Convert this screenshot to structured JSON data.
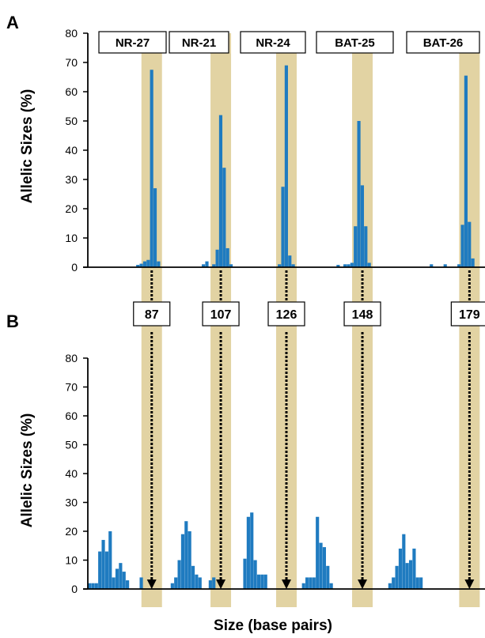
{
  "colors": {
    "bar": "#1f7bc0",
    "band": "#e2d3a3",
    "axis": "#000000",
    "box_border": "#000000"
  },
  "chart_data": [
    {
      "type": "bar",
      "panel": "A",
      "ylabel": "Allelic Sizes (%)",
      "xlabel": "",
      "ylim": [
        0,
        80
      ],
      "yticks": [
        0,
        10,
        20,
        30,
        40,
        50,
        60,
        70,
        80
      ],
      "xlim": [
        69,
        184
      ],
      "markers": [
        {
          "name": "NR-27",
          "size": 87
        },
        {
          "name": "NR-21",
          "size": 107
        },
        {
          "name": "NR-24",
          "size": 126
        },
        {
          "name": "BAT-25",
          "size": 148
        },
        {
          "name": "BAT-26",
          "size": 179
        }
      ],
      "bars": [
        {
          "x": 83,
          "y": 0.8
        },
        {
          "x": 84,
          "y": 1.2
        },
        {
          "x": 85,
          "y": 2
        },
        {
          "x": 86,
          "y": 2.5
        },
        {
          "x": 87,
          "y": 67.5
        },
        {
          "x": 88,
          "y": 27
        },
        {
          "x": 89,
          "y": 2
        },
        {
          "x": 102,
          "y": 1
        },
        {
          "x": 103,
          "y": 2
        },
        {
          "x": 105,
          "y": 1
        },
        {
          "x": 106,
          "y": 6
        },
        {
          "x": 107,
          "y": 52
        },
        {
          "x": 108,
          "y": 34
        },
        {
          "x": 109,
          "y": 6.5
        },
        {
          "x": 110,
          "y": 1
        },
        {
          "x": 124,
          "y": 1
        },
        {
          "x": 125,
          "y": 27.5
        },
        {
          "x": 126,
          "y": 69
        },
        {
          "x": 127,
          "y": 4
        },
        {
          "x": 128,
          "y": 1
        },
        {
          "x": 141,
          "y": 0.8
        },
        {
          "x": 143,
          "y": 1
        },
        {
          "x": 144,
          "y": 1
        },
        {
          "x": 145,
          "y": 1.5
        },
        {
          "x": 146,
          "y": 14
        },
        {
          "x": 147,
          "y": 50
        },
        {
          "x": 148,
          "y": 28
        },
        {
          "x": 149,
          "y": 14
        },
        {
          "x": 150,
          "y": 1.5
        },
        {
          "x": 168,
          "y": 1
        },
        {
          "x": 172,
          "y": 1
        },
        {
          "x": 176,
          "y": 1
        },
        {
          "x": 177,
          "y": 14.5
        },
        {
          "x": 178,
          "y": 65.5
        },
        {
          "x": 179,
          "y": 15.5
        },
        {
          "x": 180,
          "y": 3
        }
      ]
    },
    {
      "type": "bar",
      "panel": "B",
      "ylabel": "Allelic Sizes (%)",
      "xlabel": "Size (base pairs)",
      "ylim": [
        0,
        80
      ],
      "yticks": [
        0,
        10,
        20,
        30,
        40,
        50,
        60,
        70,
        80
      ],
      "xlim": [
        69,
        184
      ],
      "markers": [
        {
          "name": "NR-27",
          "size": 87
        },
        {
          "name": "NR-21",
          "size": 107
        },
        {
          "name": "NR-24",
          "size": 126
        },
        {
          "name": "BAT-25",
          "size": 148
        },
        {
          "name": "BAT-26",
          "size": 179
        }
      ],
      "bars": [
        {
          "x": 69,
          "y": 2
        },
        {
          "x": 70,
          "y": 2
        },
        {
          "x": 71,
          "y": 2
        },
        {
          "x": 72,
          "y": 13
        },
        {
          "x": 73,
          "y": 17
        },
        {
          "x": 74,
          "y": 13
        },
        {
          "x": 75,
          "y": 20
        },
        {
          "x": 76,
          "y": 4
        },
        {
          "x": 77,
          "y": 7
        },
        {
          "x": 78,
          "y": 9
        },
        {
          "x": 79,
          "y": 6
        },
        {
          "x": 80,
          "y": 3
        },
        {
          "x": 84,
          "y": 4
        },
        {
          "x": 93,
          "y": 2
        },
        {
          "x": 94,
          "y": 4
        },
        {
          "x": 95,
          "y": 10
        },
        {
          "x": 96,
          "y": 19
        },
        {
          "x": 97,
          "y": 23.5
        },
        {
          "x": 98,
          "y": 20
        },
        {
          "x": 99,
          "y": 8
        },
        {
          "x": 100,
          "y": 5
        },
        {
          "x": 101,
          "y": 4
        },
        {
          "x": 104,
          "y": 3
        },
        {
          "x": 105,
          "y": 4
        },
        {
          "x": 114,
          "y": 10.5
        },
        {
          "x": 115,
          "y": 25
        },
        {
          "x": 116,
          "y": 26.5
        },
        {
          "x": 117,
          "y": 10
        },
        {
          "x": 118,
          "y": 5
        },
        {
          "x": 119,
          "y": 5
        },
        {
          "x": 120,
          "y": 5
        },
        {
          "x": 131,
          "y": 2
        },
        {
          "x": 132,
          "y": 4
        },
        {
          "x": 133,
          "y": 4
        },
        {
          "x": 134,
          "y": 4
        },
        {
          "x": 135,
          "y": 25
        },
        {
          "x": 136,
          "y": 16
        },
        {
          "x": 137,
          "y": 14.5
        },
        {
          "x": 138,
          "y": 8
        },
        {
          "x": 139,
          "y": 2
        },
        {
          "x": 156,
          "y": 2
        },
        {
          "x": 157,
          "y": 4
        },
        {
          "x": 158,
          "y": 8
        },
        {
          "x": 159,
          "y": 14
        },
        {
          "x": 160,
          "y": 19
        },
        {
          "x": 161,
          "y": 9
        },
        {
          "x": 162,
          "y": 10
        },
        {
          "x": 163,
          "y": 14
        },
        {
          "x": 164,
          "y": 4
        },
        {
          "x": 165,
          "y": 4
        }
      ]
    }
  ]
}
